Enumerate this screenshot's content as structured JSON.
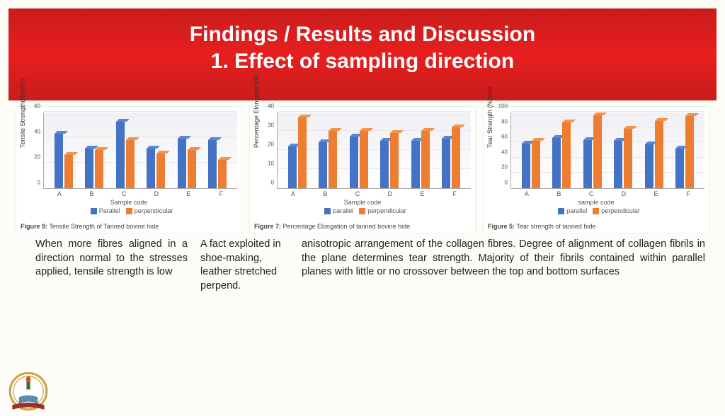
{
  "header": {
    "line1": "Findings / Results and Discussion",
    "line2": "1. Effect of sampling direction"
  },
  "charts": [
    {
      "id": "tensile",
      "ylabel": "Tensile Strength(N/mm²)",
      "xlabel": "Sample code",
      "caption_prefix": "Figure 9:",
      "caption": " Tensile Strength of Tanned bovine hide",
      "legend": {
        "a": "Parallel",
        "b": "perpendicular"
      },
      "ylim": [
        0,
        60
      ],
      "ytick_step": 20,
      "categories": [
        "A",
        "B",
        "C",
        "D",
        "E",
        "F"
      ],
      "parallel": [
        43,
        31,
        52,
        31,
        39,
        38
      ],
      "perpendicular": [
        26,
        30,
        38,
        27,
        30,
        22
      ],
      "colors": {
        "parallel": "#4472c4",
        "perpendicular": "#ed7d31"
      },
      "bg": "#f0f0f4"
    },
    {
      "id": "elongation",
      "ylabel": "Percentage Elongation(%)",
      "xlabel": "Sample code",
      "caption_prefix": "Figure 7:",
      "caption": " Percentage Elongation of tanned bovine hide",
      "legend": {
        "a": "parallel",
        "b": "perpendicular"
      },
      "ylim": [
        0,
        40
      ],
      "ytick_step": 10,
      "categories": [
        "A",
        "B",
        "C",
        "D",
        "E",
        "F"
      ],
      "parallel": [
        22,
        24,
        27,
        25,
        25,
        26
      ],
      "perpendicular": [
        37,
        30,
        30,
        29,
        30,
        32
      ],
      "colors": {
        "parallel": "#4472c4",
        "perpendicular": "#ed7d31"
      },
      "bg": "#f0f0f4"
    },
    {
      "id": "tear",
      "ylabel": "Tear Strength (N/mm)",
      "xlabel": "sample code",
      "caption_prefix": "Figure 5:",
      "caption": " Tear strength of tanned hide",
      "legend": {
        "a": "parallel",
        "b": "perpendicular"
      },
      "ylim": [
        0,
        100
      ],
      "ytick_step": 20,
      "categories": [
        "A",
        "B",
        "C",
        "D",
        "E",
        "F"
      ],
      "parallel": [
        58,
        66,
        63,
        62,
        57,
        52
      ],
      "perpendicular": [
        62,
        86,
        95,
        78,
        88,
        94
      ],
      "colors": {
        "parallel": "#4472c4",
        "perpendicular": "#ed7d31"
      },
      "bg": "#f0f0f4"
    }
  ],
  "text": {
    "col1": "When more fibres aligned in a direction normal to the stresses applied, tensile strength is low",
    "col2": "A fact exploited in shoe-making, leather stretched perpend.",
    "col3": "anisotropic arrangement of the collagen fibres. Degree of alignment of collagen fibrils in the plane determines tear strength. Majority of their fibrils contained within parallel planes with little or no crossover between the top and bottom surfaces"
  },
  "logo": {
    "outer_ring": "#c7a84a",
    "inner": "#ffffff",
    "accent": "#3b6e2e",
    "book": "#5a8bbd",
    "ribbon": "#9a2f2f"
  }
}
